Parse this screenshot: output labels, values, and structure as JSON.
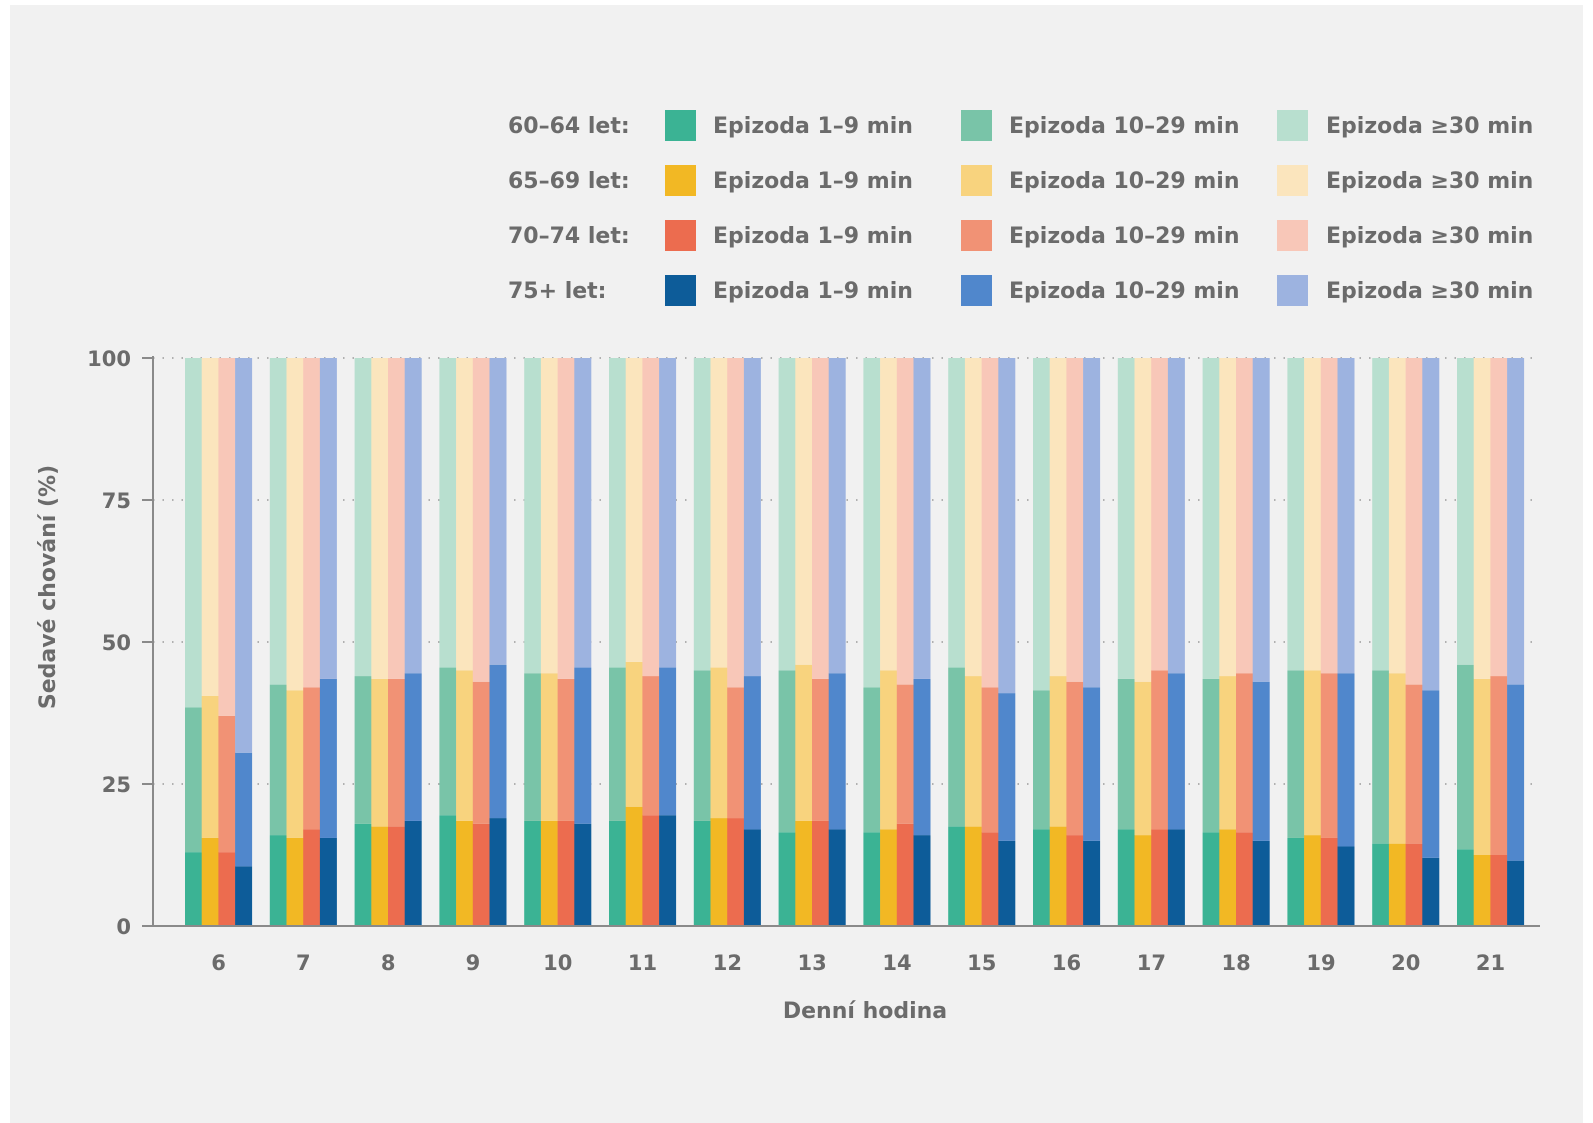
{
  "chart_data": {
    "type": "bar",
    "stacked": true,
    "xlabel": "Denní hodina",
    "ylabel": "Sedavé chování (%)",
    "ylim": [
      0,
      100
    ],
    "yticks": [
      "0",
      "25",
      "50",
      "75",
      "100"
    ],
    "grid": "horizontal dotted",
    "legend_position": "top-right",
    "categories": [
      "6",
      "7",
      "8",
      "9",
      "10",
      "11",
      "12",
      "13",
      "14",
      "15",
      "16",
      "17",
      "18",
      "19",
      "20",
      "21"
    ],
    "groups": [
      {
        "name": "60–64 let:",
        "colors": [
          "#3bb394",
          "#79c4a8",
          "#b8dfcf"
        ],
        "short": [
          13,
          16,
          18,
          19.5,
          18.5,
          18.5,
          18.5,
          16.5,
          16.5,
          17.5,
          17,
          17,
          16.5,
          15.5,
          14.5,
          13.5
        ],
        "mid_top": [
          38.5,
          42.5,
          44,
          45.5,
          44.5,
          45.5,
          45,
          45,
          42,
          45.5,
          41.5,
          43.5,
          43.5,
          45,
          45,
          46
        ]
      },
      {
        "name": "65–69 let:",
        "colors": [
          "#f2b824",
          "#f8d37e",
          "#fbe5bd"
        ],
        "short": [
          15.5,
          15.5,
          17.5,
          18.5,
          18.5,
          21,
          19,
          18.5,
          17,
          17.5,
          17.5,
          16,
          17,
          16,
          14.5,
          12.5
        ],
        "mid_top": [
          40.5,
          41.5,
          43.5,
          45,
          44.5,
          46.5,
          45.5,
          46,
          45,
          44,
          44,
          43,
          44,
          45,
          44.5,
          43.5
        ]
      },
      {
        "name": "70–74 let:",
        "colors": [
          "#ec6c4f",
          "#f19275",
          "#f8c7b8"
        ],
        "short": [
          13,
          17,
          17.5,
          18,
          18.5,
          19.5,
          19,
          18.5,
          18,
          16.5,
          16,
          17,
          16.5,
          15.5,
          14.5,
          12.5
        ],
        "mid_top": [
          37,
          42,
          43.5,
          43,
          43.5,
          44,
          42,
          43.5,
          42.5,
          42,
          43,
          45,
          44.5,
          44.5,
          42.5,
          44
        ]
      },
      {
        "name": "75+ let:",
        "colors": [
          "#0d5c99",
          "#5087cc",
          "#9db3e0"
        ],
        "short": [
          10.5,
          15.5,
          18.5,
          19,
          18,
          19.5,
          17,
          17,
          16,
          15,
          15,
          17,
          15,
          14,
          12,
          11.5
        ],
        "mid_top": [
          30.5,
          43.5,
          44.5,
          46,
          45.5,
          45.5,
          44,
          44.5,
          43.5,
          41,
          42,
          44.5,
          43,
          44.5,
          41.5,
          42.5
        ]
      }
    ],
    "segment_labels": [
      "Epizoda 1–9 min",
      "Epizoda 10–29 min",
      "Epizoda ≥30 min"
    ]
  }
}
